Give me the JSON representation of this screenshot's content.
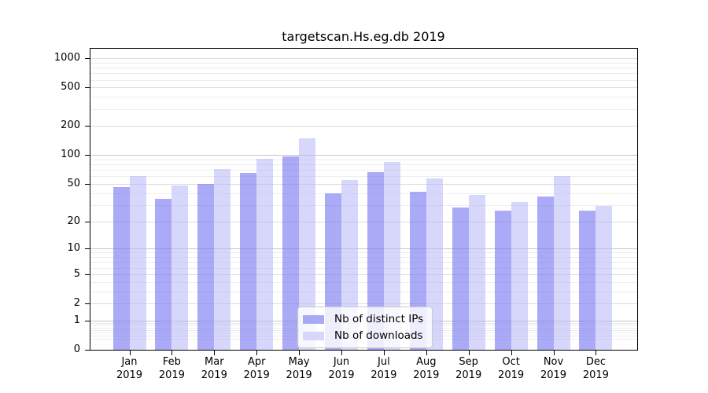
{
  "legend": {
    "items": [
      {
        "label": "Nb of distinct IPs",
        "color": "#aaaaf4"
      },
      {
        "label": "Nb of downloads",
        "color": "#d7d7f9"
      }
    ]
  },
  "colors": {
    "ips_bar": "#7676f0",
    "downloads_bar": "#b7b7f8",
    "ips_swatch": "#aaaaf4",
    "downloads_swatch": "#d7d7f9",
    "axis": "#000000",
    "grid_major": "#c6c6c6",
    "grid_mid": "#dcdcdc",
    "grid_minor": "#ededed"
  },
  "chart_data": {
    "type": "bar",
    "title": "targetscan.Hs.eg.db 2019",
    "categories": [
      "Jan",
      "Feb",
      "Mar",
      "Apr",
      "May",
      "Jun",
      "Jul",
      "Aug",
      "Sep",
      "Oct",
      "Nov",
      "Dec"
    ],
    "x_tick_year": "2019",
    "series": [
      {
        "name": "Nb of distinct IPs",
        "values": [
          46,
          35,
          50,
          65,
          96,
          40,
          67,
          41,
          28,
          26,
          37,
          26
        ]
      },
      {
        "name": "Nb of downloads",
        "values": [
          61,
          48,
          71,
          92,
          148,
          55,
          85,
          57,
          38,
          32,
          61,
          29
        ]
      }
    ],
    "xlabel": "",
    "ylabel": "",
    "y_scale": "log1p",
    "y_ticks": [
      0,
      1,
      2,
      5,
      10,
      20,
      50,
      100,
      200,
      500,
      1000
    ],
    "ylim": [
      0,
      1000
    ],
    "grid": true,
    "legend_position": "lower center inside"
  }
}
